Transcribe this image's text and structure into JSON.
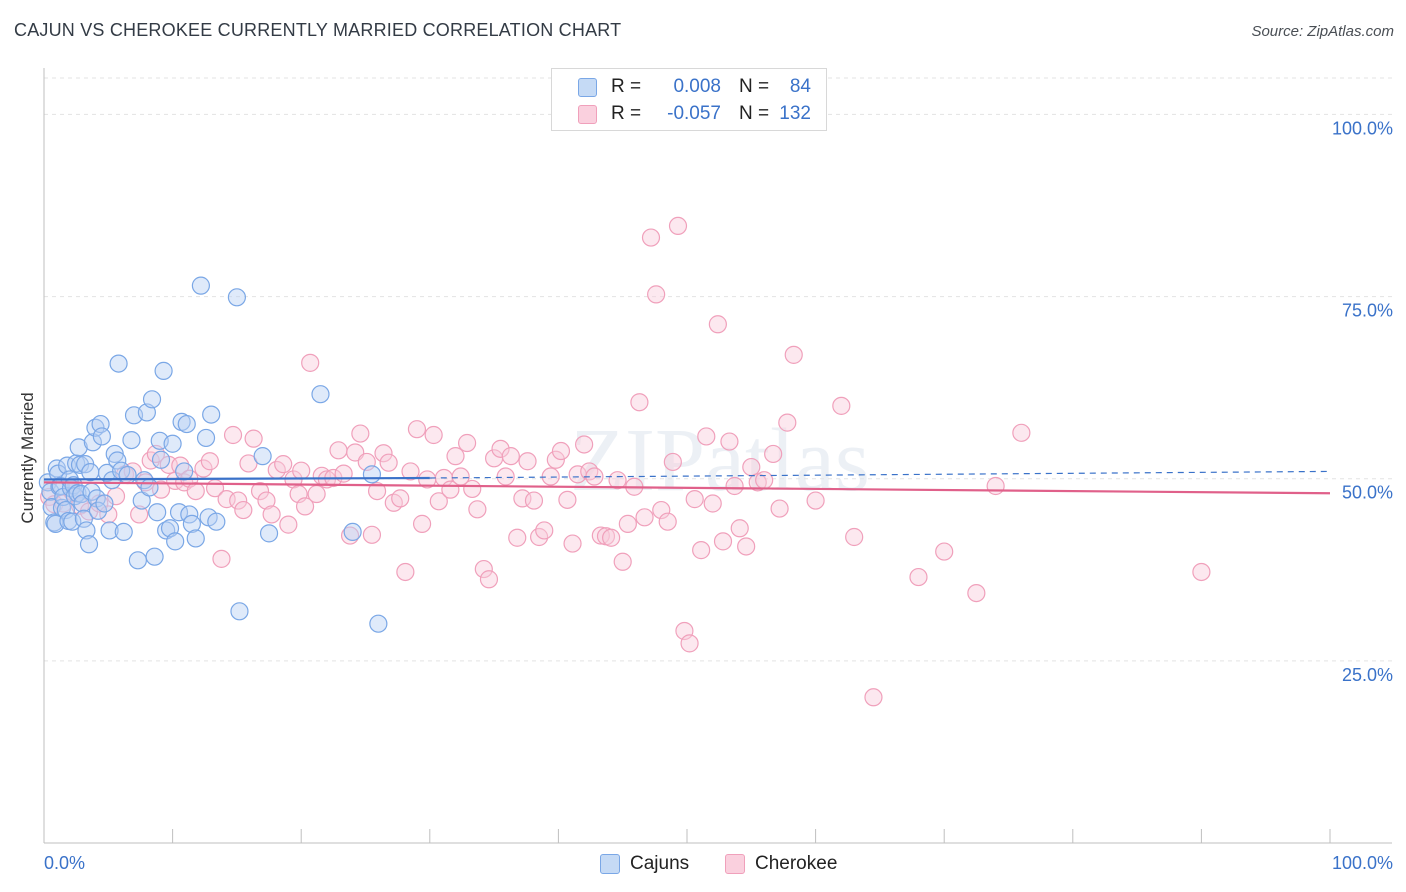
{
  "title": "CAJUN VS CHEROKEE CURRENTLY MARRIED CORRELATION CHART",
  "source": "Source: ZipAtlas.com",
  "watermark": "ZIPatlas",
  "colors": {
    "cajuns": "#7aa7e6",
    "cajuns_line": "#3a72c9",
    "cherokee": "#f0a0bb",
    "cherokee_line": "#e0608a",
    "axis_label": "#3a72c9"
  },
  "legend": {
    "rows": [
      {
        "r_label": "R =",
        "r": "0.008",
        "n_label": "N =",
        "n": "84"
      },
      {
        "r_label": "R =",
        "r": "-0.057",
        "n_label": "N =",
        "n": "132"
      }
    ]
  },
  "bottom_legend": [
    "Cajuns",
    "Cherokee"
  ],
  "chart_data": {
    "type": "scatter",
    "title": "CAJUN VS CHEROKEE CURRENTLY MARRIED CORRELATION CHART",
    "xlabel": "",
    "ylabel": "Currently Married",
    "xlim": [
      0,
      100
    ],
    "ylim": [
      0,
      105
    ],
    "x_tick_labels": [
      "0.0%",
      "100.0%"
    ],
    "y_ticks": [
      25,
      50,
      75,
      100
    ],
    "y_tick_labels": [
      "25.0%",
      "50.0%",
      "75.0%",
      "100.0%"
    ],
    "grid": true,
    "series": [
      {
        "name": "Cajuns",
        "r": 0.008,
        "n": 84,
        "trend": {
          "x": [
            0,
            30
          ],
          "y": [
            49.9,
            50.1
          ],
          "dashed_to": [
            100,
            51.0
          ]
        },
        "points": [
          [
            0.3,
            49.5
          ],
          [
            0.5,
            48.2
          ],
          [
            0.6,
            46.1
          ],
          [
            0.8,
            44.0
          ],
          [
            0.9,
            43.8
          ],
          [
            1.0,
            51.4
          ],
          [
            1.1,
            50.7
          ],
          [
            1.2,
            48.9
          ],
          [
            1.3,
            49.0
          ],
          [
            1.4,
            46.0
          ],
          [
            1.5,
            47.5
          ],
          [
            1.7,
            45.7
          ],
          [
            1.8,
            51.8
          ],
          [
            1.9,
            44.2
          ],
          [
            2.0,
            49.9
          ],
          [
            2.1,
            48.7
          ],
          [
            2.2,
            44.1
          ],
          [
            2.3,
            49.1
          ],
          [
            2.4,
            47.6
          ],
          [
            2.5,
            52.1
          ],
          [
            2.6,
            48.0
          ],
          [
            2.7,
            54.3
          ],
          [
            2.8,
            51.9
          ],
          [
            2.9,
            47.9
          ],
          [
            3.0,
            46.6
          ],
          [
            3.1,
            44.5
          ],
          [
            3.2,
            52.0
          ],
          [
            3.3,
            42.9
          ],
          [
            3.5,
            41.0
          ],
          [
            3.6,
            50.9
          ],
          [
            3.7,
            48.2
          ],
          [
            3.8,
            55.0
          ],
          [
            4.0,
            57.0
          ],
          [
            4.1,
            47.3
          ],
          [
            4.2,
            45.6
          ],
          [
            4.4,
            57.5
          ],
          [
            4.5,
            55.8
          ],
          [
            4.7,
            46.6
          ],
          [
            4.9,
            50.8
          ],
          [
            5.1,
            42.9
          ],
          [
            5.3,
            49.8
          ],
          [
            5.5,
            53.4
          ],
          [
            5.7,
            52.5
          ],
          [
            6.0,
            51.1
          ],
          [
            6.2,
            42.7
          ],
          [
            6.5,
            50.5
          ],
          [
            6.8,
            55.3
          ],
          [
            7.0,
            58.7
          ],
          [
            7.3,
            38.8
          ],
          [
            7.6,
            47.0
          ],
          [
            7.8,
            49.8
          ],
          [
            8.0,
            59.1
          ],
          [
            8.2,
            48.8
          ],
          [
            8.4,
            60.9
          ],
          [
            8.6,
            39.3
          ],
          [
            8.8,
            45.4
          ],
          [
            9.0,
            55.2
          ],
          [
            9.1,
            52.6
          ],
          [
            9.3,
            64.8
          ],
          [
            9.5,
            42.9
          ],
          [
            9.8,
            43.2
          ],
          [
            10.0,
            54.8
          ],
          [
            10.2,
            41.4
          ],
          [
            10.5,
            45.4
          ],
          [
            10.7,
            57.8
          ],
          [
            10.9,
            51.0
          ],
          [
            11.1,
            57.5
          ],
          [
            11.3,
            45.1
          ],
          [
            11.5,
            43.8
          ],
          [
            11.8,
            41.8
          ],
          [
            12.2,
            76.5
          ],
          [
            12.6,
            55.6
          ],
          [
            12.8,
            44.7
          ],
          [
            13.0,
            58.8
          ],
          [
            13.4,
            44.1
          ],
          [
            15.0,
            74.9
          ],
          [
            15.2,
            31.8
          ],
          [
            17.0,
            53.1
          ],
          [
            17.5,
            42.5
          ],
          [
            21.5,
            61.6
          ],
          [
            24.0,
            42.7
          ],
          [
            25.5,
            50.6
          ],
          [
            26.0,
            30.1
          ],
          [
            5.8,
            65.8
          ]
        ]
      },
      {
        "name": "Cherokee",
        "r": -0.057,
        "n": 132,
        "trend": {
          "x": [
            0,
            100
          ],
          "y": [
            49.5,
            48.0
          ]
        },
        "points": [
          [
            0.4,
            47.5
          ],
          [
            0.8,
            46.5
          ],
          [
            1.5,
            46.6
          ],
          [
            2.2,
            48.2
          ],
          [
            2.8,
            46.3
          ],
          [
            3.5,
            45.5
          ],
          [
            4.3,
            46.6
          ],
          [
            5.0,
            45.1
          ],
          [
            5.6,
            47.6
          ],
          [
            6.3,
            50.6
          ],
          [
            6.9,
            51.0
          ],
          [
            7.4,
            45.1
          ],
          [
            7.9,
            49.5
          ],
          [
            8.3,
            52.5
          ],
          [
            8.7,
            53.4
          ],
          [
            9.1,
            48.5
          ],
          [
            9.7,
            51.9
          ],
          [
            10.2,
            49.7
          ],
          [
            10.6,
            51.8
          ],
          [
            10.9,
            49.5
          ],
          [
            11.3,
            50.0
          ],
          [
            11.8,
            48.3
          ],
          [
            12.4,
            51.4
          ],
          [
            12.9,
            52.4
          ],
          [
            13.3,
            48.7
          ],
          [
            13.8,
            39.0
          ],
          [
            14.2,
            47.2
          ],
          [
            14.7,
            56.0
          ],
          [
            15.1,
            47.0
          ],
          [
            15.5,
            45.7
          ],
          [
            15.9,
            52.1
          ],
          [
            16.3,
            55.5
          ],
          [
            16.8,
            48.3
          ],
          [
            17.3,
            47.0
          ],
          [
            17.7,
            45.1
          ],
          [
            18.1,
            51.2
          ],
          [
            18.6,
            52.0
          ],
          [
            19.0,
            43.7
          ],
          [
            19.4,
            49.9
          ],
          [
            19.8,
            47.9
          ],
          [
            20.3,
            46.2
          ],
          [
            20.7,
            65.9
          ],
          [
            21.2,
            47.9
          ],
          [
            21.6,
            50.4
          ],
          [
            22.0,
            49.9
          ],
          [
            22.5,
            50.1
          ],
          [
            22.9,
            53.9
          ],
          [
            23.3,
            50.7
          ],
          [
            23.8,
            42.2
          ],
          [
            24.2,
            53.6
          ],
          [
            24.6,
            56.2
          ],
          [
            25.1,
            52.3
          ],
          [
            25.5,
            42.3
          ],
          [
            25.9,
            48.3
          ],
          [
            26.4,
            53.5
          ],
          [
            26.8,
            52.2
          ],
          [
            27.2,
            46.7
          ],
          [
            27.7,
            47.3
          ],
          [
            28.1,
            37.2
          ],
          [
            28.5,
            51.0
          ],
          [
            29.0,
            56.8
          ],
          [
            29.4,
            43.8
          ],
          [
            29.8,
            49.9
          ],
          [
            30.3,
            56.0
          ],
          [
            30.7,
            46.9
          ],
          [
            31.1,
            50.1
          ],
          [
            31.6,
            48.5
          ],
          [
            32.0,
            53.1
          ],
          [
            32.4,
            50.3
          ],
          [
            32.9,
            54.9
          ],
          [
            33.3,
            48.6
          ],
          [
            33.7,
            45.8
          ],
          [
            34.2,
            37.6
          ],
          [
            34.6,
            36.2
          ],
          [
            35.0,
            52.8
          ],
          [
            35.5,
            54.1
          ],
          [
            35.9,
            50.3
          ],
          [
            36.3,
            53.1
          ],
          [
            36.8,
            41.9
          ],
          [
            37.2,
            47.3
          ],
          [
            37.6,
            52.4
          ],
          [
            38.1,
            47.0
          ],
          [
            38.5,
            42.0
          ],
          [
            38.9,
            42.9
          ],
          [
            39.4,
            50.3
          ],
          [
            39.8,
            52.6
          ],
          [
            40.2,
            53.8
          ],
          [
            40.7,
            47.1
          ],
          [
            41.1,
            41.1
          ],
          [
            41.5,
            50.6
          ],
          [
            42.0,
            54.7
          ],
          [
            42.4,
            51.0
          ],
          [
            42.8,
            50.3
          ],
          [
            43.3,
            42.2
          ],
          [
            43.7,
            42.1
          ],
          [
            44.1,
            41.9
          ],
          [
            44.6,
            49.8
          ],
          [
            45.0,
            38.6
          ],
          [
            45.4,
            43.8
          ],
          [
            45.9,
            48.9
          ],
          [
            46.3,
            60.5
          ],
          [
            46.7,
            44.7
          ],
          [
            47.2,
            83.1
          ],
          [
            47.6,
            75.3
          ],
          [
            48.0,
            45.7
          ],
          [
            48.5,
            44.1
          ],
          [
            48.9,
            52.3
          ],
          [
            49.3,
            84.7
          ],
          [
            49.8,
            29.1
          ],
          [
            50.2,
            27.4
          ],
          [
            50.6,
            47.2
          ],
          [
            51.1,
            40.2
          ],
          [
            51.5,
            55.8
          ],
          [
            52.0,
            46.6
          ],
          [
            52.4,
            71.2
          ],
          [
            52.8,
            41.4
          ],
          [
            53.3,
            55.1
          ],
          [
            53.7,
            49.0
          ],
          [
            54.1,
            43.2
          ],
          [
            54.6,
            40.7
          ],
          [
            55.0,
            51.6
          ],
          [
            55.5,
            49.5
          ],
          [
            56.0,
            49.8
          ],
          [
            56.7,
            53.4
          ],
          [
            57.2,
            45.9
          ],
          [
            57.8,
            57.7
          ],
          [
            58.3,
            67.0
          ],
          [
            60.0,
            47.0
          ],
          [
            62.0,
            60.0
          ],
          [
            63.0,
            42.0
          ],
          [
            64.5,
            20.0
          ],
          [
            68.0,
            36.5
          ],
          [
            70.0,
            40.0
          ],
          [
            72.5,
            34.3
          ],
          [
            74.0,
            49.0
          ],
          [
            76.0,
            56.3
          ],
          [
            90.0,
            37.2
          ],
          [
            20.0,
            51.1
          ]
        ]
      }
    ]
  }
}
